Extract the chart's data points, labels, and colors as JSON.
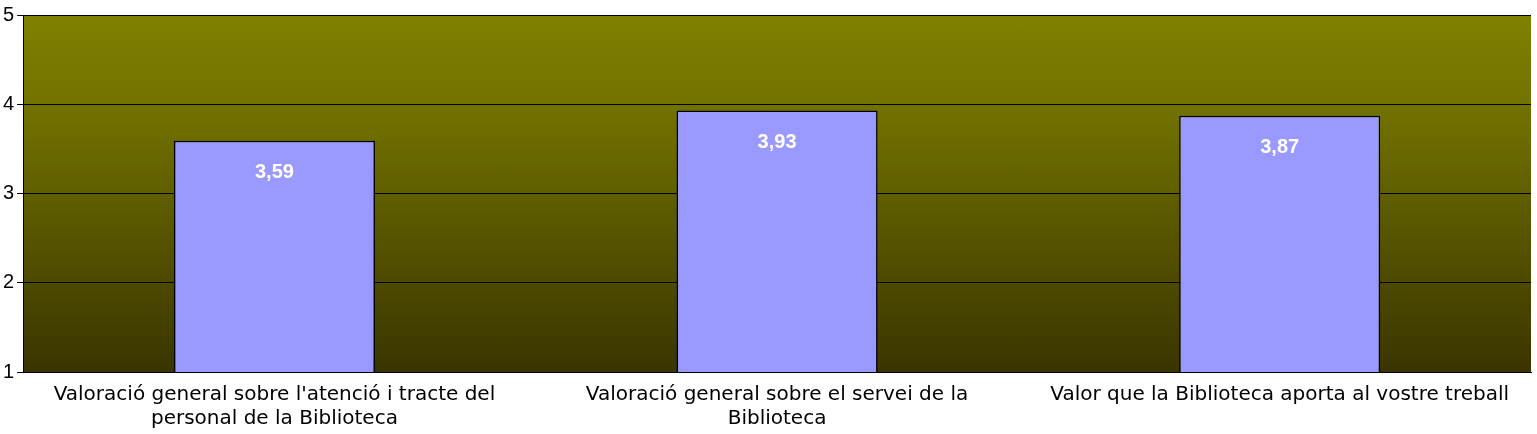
{
  "chart_data": {
    "type": "bar",
    "categories": [
      "Valoració general sobre l'atenció i tracte del personal de la Biblioteca",
      "Valoració general sobre el servei de la Biblioteca",
      "Valor que la Biblioteca aporta al vostre treball"
    ],
    "values": [
      3.59,
      3.93,
      3.87
    ],
    "value_labels": [
      "3,59",
      "3,93",
      "3,87"
    ],
    "color": "#9999ff",
    "ylim": [
      1,
      5
    ],
    "yticks": [
      1,
      2,
      3,
      4,
      5
    ],
    "grid": "y",
    "legend": false
  }
}
